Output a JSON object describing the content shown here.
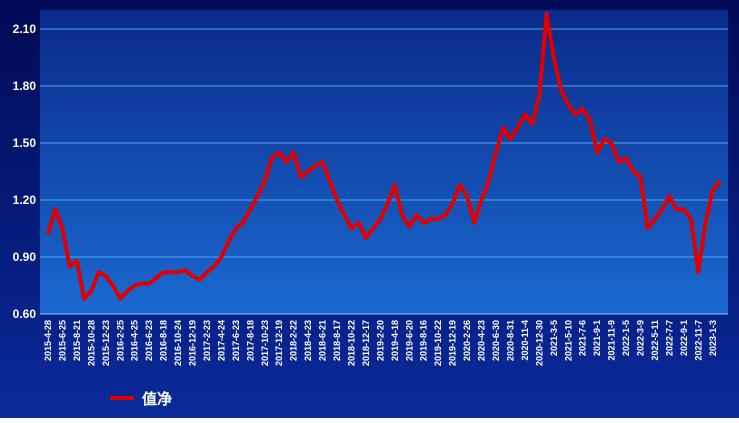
{
  "chart_data": {
    "type": "line",
    "categories": [
      "2015-4-28",
      null,
      "2015-6-25",
      null,
      "2015-8-21",
      null,
      "2015-10-28",
      null,
      "2015-12-23",
      null,
      "2016-2-25",
      null,
      "2016-4-25",
      null,
      "2016-6-23",
      null,
      "2016-8-18",
      null,
      "2016-10-24",
      null,
      "2016-12-19",
      null,
      "2017-2-23",
      null,
      "2017-4-24",
      null,
      "2017-6-23",
      null,
      "2017-8-18",
      null,
      "2017-10-23",
      null,
      "2017-12-19",
      null,
      "2018-2-22",
      null,
      "2018-4-23",
      null,
      "2018-6-21",
      null,
      "2018-8-17",
      null,
      "2018-10-22",
      null,
      "2018-12-17",
      null,
      "2019-2-20",
      null,
      "2019-4-18",
      null,
      "2019-6-20",
      null,
      "2019-8-16",
      null,
      "2019-10-22",
      null,
      "2019-12-19",
      null,
      "2020-2-26",
      null,
      "2020-4-23",
      null,
      "2020-6-30",
      null,
      "2020-8-31",
      null,
      "2020-11-4",
      null,
      "2020-12-30",
      null,
      "2021-3-5",
      null,
      "2021-5-10",
      null,
      "2021-7-6",
      null,
      "2021-9-1",
      null,
      "2021-11-9",
      null,
      "2022-1-5",
      null,
      "2022-3-9",
      null,
      "2022-5-11",
      null,
      "2022-7-7",
      null,
      "2022-9-1",
      null,
      "2022-11-7",
      null,
      "2023-1-3",
      null
    ],
    "series": [
      {
        "name": "值净",
        "color": "#e00000",
        "values": [
          1.02,
          1.15,
          1.05,
          0.85,
          0.88,
          0.68,
          0.72,
          0.82,
          0.8,
          0.75,
          0.68,
          0.72,
          0.75,
          0.76,
          0.76,
          0.79,
          0.82,
          0.82,
          0.82,
          0.83,
          0.8,
          0.78,
          0.82,
          0.85,
          0.9,
          0.98,
          1.05,
          1.08,
          1.15,
          1.22,
          1.3,
          1.42,
          1.45,
          1.4,
          1.45,
          1.32,
          1.35,
          1.38,
          1.4,
          1.3,
          1.2,
          1.12,
          1.05,
          1.08,
          1.0,
          1.05,
          1.1,
          1.18,
          1.28,
          1.12,
          1.06,
          1.12,
          1.08,
          1.1,
          1.1,
          1.12,
          1.18,
          1.28,
          1.22,
          1.08,
          1.2,
          1.3,
          1.45,
          1.58,
          1.52,
          1.58,
          1.65,
          1.6,
          1.75,
          2.18,
          1.95,
          1.78,
          1.7,
          1.65,
          1.68,
          1.62,
          1.45,
          1.52,
          1.5,
          1.4,
          1.42,
          1.35,
          1.32,
          1.05,
          1.1,
          1.15,
          1.22,
          1.15,
          1.15,
          1.1,
          0.82,
          1.08,
          1.25,
          1.3
        ]
      }
    ],
    "ylim": [
      0.6,
      2.2
    ],
    "yticks": [
      {
        "value": 0.6,
        "label": "0.60"
      },
      {
        "value": 0.9,
        "label": "0.90"
      },
      {
        "value": 1.2,
        "label": "1.20"
      },
      {
        "value": 1.5,
        "label": "1.50"
      },
      {
        "value": 1.8,
        "label": "1.80"
      },
      {
        "value": 2.1,
        "label": "2.10"
      }
    ],
    "grid": true,
    "legend": "bottom-left"
  }
}
